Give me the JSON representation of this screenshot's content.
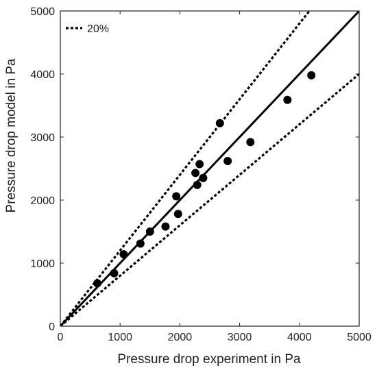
{
  "chart_data": {
    "type": "scatter",
    "title": "",
    "xlabel": "Pressure drop experiment in Pa",
    "ylabel": "Pressure drop model in Pa",
    "xlim": [
      0,
      5000
    ],
    "ylim": [
      0,
      5000
    ],
    "xticks": [
      0,
      1000,
      2000,
      3000,
      4000,
      5000
    ],
    "yticks": [
      0,
      1000,
      2000,
      3000,
      4000,
      5000
    ],
    "grid": false,
    "legend_position": "top-left",
    "legend": [
      {
        "label": "20%",
        "style": "dotted"
      }
    ],
    "series": [
      {
        "type": "scatter",
        "color": "#000000",
        "points": [
          {
            "x": 620,
            "y": 680
          },
          {
            "x": 900,
            "y": 840
          },
          {
            "x": 1060,
            "y": 1140
          },
          {
            "x": 1340,
            "y": 1310
          },
          {
            "x": 1500,
            "y": 1500
          },
          {
            "x": 1760,
            "y": 1580
          },
          {
            "x": 1940,
            "y": 2060
          },
          {
            "x": 1970,
            "y": 1780
          },
          {
            "x": 2260,
            "y": 2430
          },
          {
            "x": 2290,
            "y": 2240
          },
          {
            "x": 2330,
            "y": 2570
          },
          {
            "x": 2390,
            "y": 2350
          },
          {
            "x": 2670,
            "y": 3220
          },
          {
            "x": 2800,
            "y": 2620
          },
          {
            "x": 3180,
            "y": 2920
          },
          {
            "x": 3800,
            "y": 3590
          },
          {
            "x": 4200,
            "y": 3980
          }
        ]
      },
      {
        "type": "line",
        "style": "solid",
        "color": "#000000",
        "x": [
          0,
          5000
        ],
        "y": [
          0,
          5000
        ]
      },
      {
        "name": "20%",
        "type": "line",
        "style": "dotted",
        "color": "#000000",
        "x": [
          0,
          4167
        ],
        "y": [
          0,
          5000
        ]
      },
      {
        "type": "line",
        "style": "dotted",
        "color": "#000000",
        "x": [
          0,
          5000
        ],
        "y": [
          0,
          4000
        ]
      }
    ]
  }
}
